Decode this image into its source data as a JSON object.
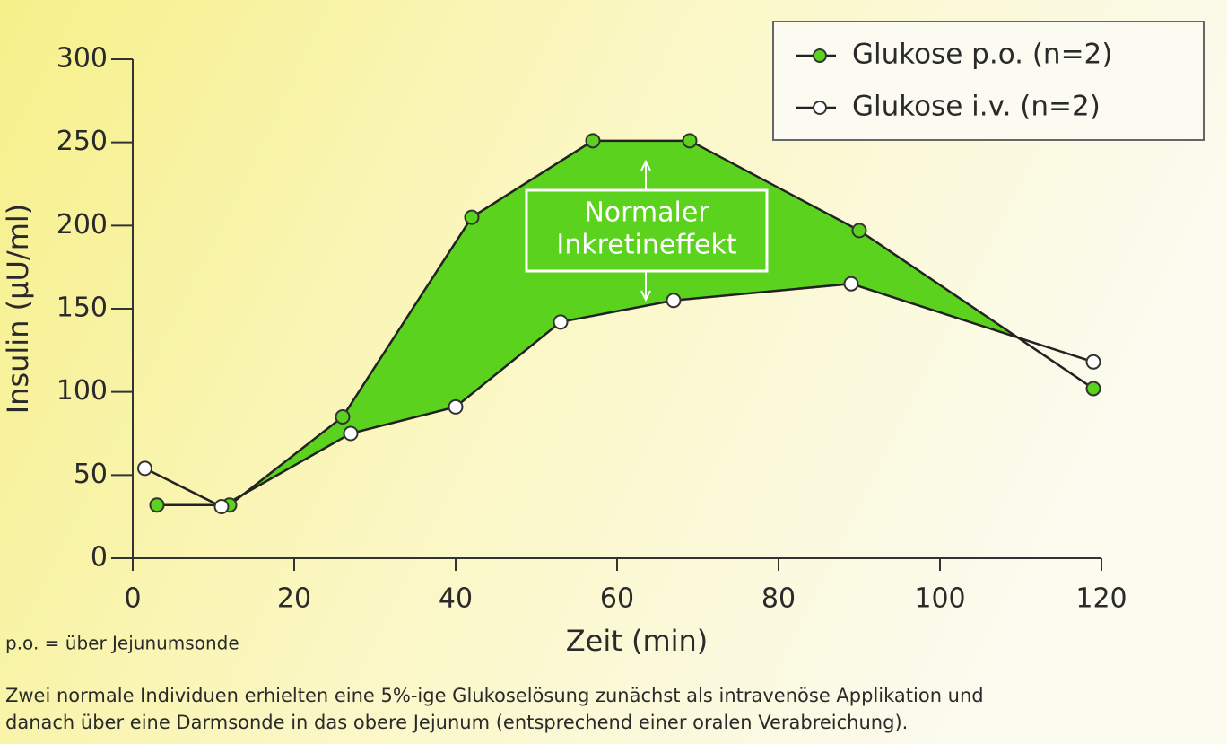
{
  "chart_data": {
    "type": "line",
    "x_label": "Zeit (min)",
    "y_label": "Insulin (µU/ml)",
    "xlim": [
      0,
      120
    ],
    "xticks": [
      0,
      20,
      40,
      60,
      80,
      100,
      120
    ],
    "ylim": [
      0,
      300
    ],
    "yticks": [
      0,
      50,
      100,
      150,
      200,
      250,
      300
    ],
    "series": [
      {
        "name": "Glukose p.o. (n=2)",
        "color": "#5ad21e",
        "x": [
          3,
          12,
          26,
          42,
          57,
          69,
          90,
          119
        ],
        "values": [
          32,
          32,
          85,
          205,
          251,
          251,
          197,
          102
        ]
      },
      {
        "name": "Glukose i.v. (n=2)",
        "color": "#ffffff",
        "x": [
          1.5,
          11,
          27,
          40,
          53,
          67,
          89,
          119
        ],
        "values": [
          54,
          31,
          75,
          91,
          142,
          155,
          165,
          118
        ]
      }
    ],
    "area_color": "#5ad21e",
    "annotation": [
      "Normaler",
      "Inkretineffekt"
    ],
    "legend": "upper right",
    "note": "p.o. = über Jejunumsonde",
    "caption": [
      "Zwei normale Individuen erhielten eine 5%-ige Glukoselösung zunächst als intravenöse Applikation und",
      "danach über eine Darmsonde in das obere Jejunum (entsprechend einer oralen Verabreichung)."
    ]
  }
}
